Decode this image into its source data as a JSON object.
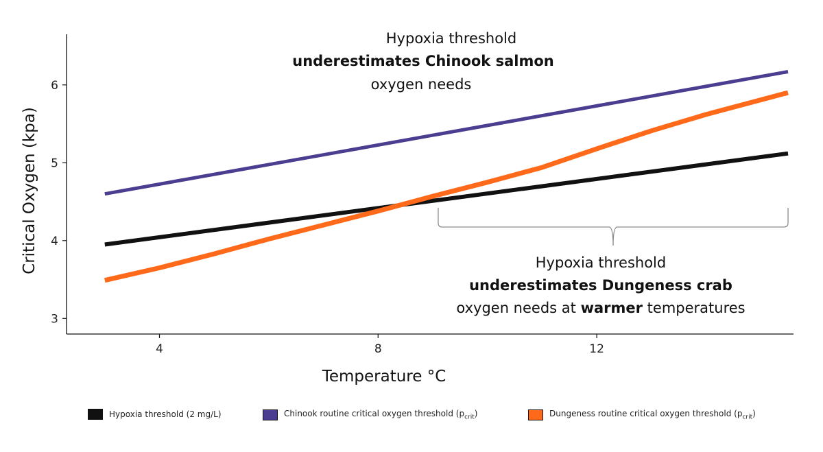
{
  "chart_data": {
    "type": "line",
    "xlabel": "Temperature °C",
    "ylabel": "Critical Oxygen (kpa)",
    "xlim": [
      2.3,
      15.6
    ],
    "ylim": [
      2.8,
      6.65
    ],
    "x_ticks": [
      4,
      8,
      12
    ],
    "y_ticks": [
      3,
      4,
      5,
      6
    ],
    "grid": false,
    "legend_position": "bottom",
    "series": [
      {
        "name": "Hypoxia threshold (2 mg/L)",
        "color": "#111111",
        "x": [
          3,
          15.5
        ],
        "y": [
          3.95,
          5.12
        ]
      },
      {
        "name": "Chinook routine critical oxygen threshold (pcrit)",
        "color": "#4b3d8f",
        "x": [
          3,
          15.5
        ],
        "y": [
          4.6,
          6.17
        ]
      },
      {
        "name": "Dungeness routine critical oxygen threshold (pcrit)",
        "color": "#ff6a1a",
        "x": [
          3,
          4,
          5,
          6,
          7,
          8,
          9,
          10,
          11,
          12,
          13,
          14,
          15.5
        ],
        "y": [
          3.49,
          3.65,
          3.83,
          4.02,
          4.2,
          4.38,
          4.57,
          4.75,
          4.94,
          5.18,
          5.41,
          5.62,
          5.9
        ]
      }
    ],
    "annotations": {
      "top": {
        "line1": "Hypoxia threshold",
        "line2": "underestimates Chinook salmon",
        "line3": "oxygen needs"
      },
      "bottom": {
        "line1": "Hypoxia threshold",
        "line2": "underestimates Dungeness crab",
        "line3_a": "oxygen needs at ",
        "line3_b": "warmer",
        "line3_c": " temperatures"
      },
      "bracket_x_range": [
        9.1,
        15.5
      ]
    }
  },
  "legend": {
    "items": [
      {
        "label": "Hypoxia threshold (2 mg/L)",
        "sub": "",
        "suffix": "",
        "color": "#111111"
      },
      {
        "label": "Chinook routine critical oxygen threshold (p",
        "sub": "crit",
        "suffix": ")",
        "color": "#4b3d8f"
      },
      {
        "label": "Dungeness routine critical oxygen threshold (p",
        "sub": "crit",
        "suffix": ")",
        "color": "#ff6a1a"
      }
    ]
  }
}
